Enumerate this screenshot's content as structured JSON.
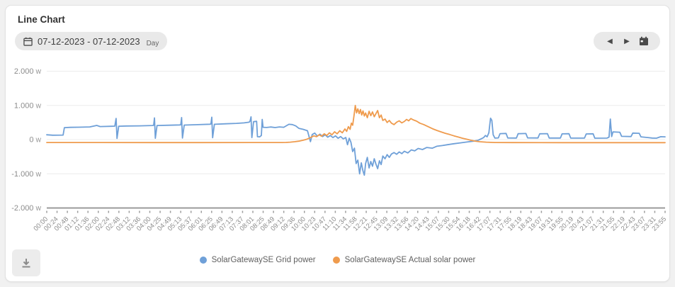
{
  "header": {
    "title": "Line Chart"
  },
  "toolbar": {
    "date_range": "07-12-2023 - 07-12-2023",
    "granularity": "Day",
    "nav": {
      "prev_icon": "◀",
      "next_icon": "▶"
    }
  },
  "colors": {
    "grid_power": "#6fa0d8",
    "solar_power": "#ef9b4d",
    "gridline": "#ececec",
    "axis": "#9b9b9b",
    "tick_text": "#8c8c8c"
  },
  "chart_data": {
    "type": "line",
    "title": "Line Chart",
    "xlabel": "",
    "ylabel": "",
    "unit": "W",
    "ylim": [
      -2000,
      2000
    ],
    "grid": "horizontal",
    "legend_position": "bottom",
    "y_ticks": [
      {
        "value": 2000,
        "label": "2.000"
      },
      {
        "value": 1000,
        "label": "1.000"
      },
      {
        "value": 0,
        "label": "0"
      },
      {
        "value": -1000,
        "label": "-1.000"
      },
      {
        "value": -2000,
        "label": "-2.000"
      }
    ],
    "x_tick_labels": [
      "00:00",
      "00:24",
      "00:48",
      "01:12",
      "01:36",
      "02:00",
      "02:24",
      "02:48",
      "03:12",
      "03:36",
      "04:00",
      "04:25",
      "04:49",
      "05:13",
      "05:37",
      "06:01",
      "06:25",
      "06:49",
      "07:13",
      "07:37",
      "08:01",
      "08:25",
      "08:49",
      "09:12",
      "09:36",
      "10:00",
      "10:23",
      "10:47",
      "11:10",
      "11:34",
      "11:58",
      "12:21",
      "12:45",
      "13:09",
      "13:32",
      "13:56",
      "14:20",
      "14:43",
      "15:07",
      "15:30",
      "15:54",
      "16:18",
      "16:42",
      "17:07",
      "17:31",
      "17:55",
      "18:19",
      "18:43",
      "19:07",
      "19:31",
      "19:55",
      "20:19",
      "20:43",
      "21:07",
      "21:31",
      "21:55",
      "22:19",
      "22:43",
      "23:07",
      "23:31",
      "23:55"
    ],
    "x_range_minutes": [
      0,
      1435
    ],
    "series": [
      {
        "name": "SolarGatewaySE Grid power",
        "color": "#6fa0d8",
        "points": [
          [
            0,
            140
          ],
          [
            14,
            128
          ],
          [
            38,
            132
          ],
          [
            41,
            350
          ],
          [
            55,
            358
          ],
          [
            75,
            362
          ],
          [
            100,
            372
          ],
          [
            116,
            415
          ],
          [
            124,
            382
          ],
          [
            150,
            390
          ],
          [
            158,
            394
          ],
          [
            161,
            620
          ],
          [
            163,
            35
          ],
          [
            167,
            392
          ],
          [
            185,
            398
          ],
          [
            215,
            402
          ],
          [
            245,
            412
          ],
          [
            248,
            416
          ],
          [
            250,
            635
          ],
          [
            252,
            40
          ],
          [
            256,
            412
          ],
          [
            285,
            420
          ],
          [
            308,
            428
          ],
          [
            311,
            432
          ],
          [
            313,
            645
          ],
          [
            315,
            45
          ],
          [
            319,
            424
          ],
          [
            345,
            436
          ],
          [
            378,
            450
          ],
          [
            381,
            455
          ],
          [
            383,
            655
          ],
          [
            385,
            55
          ],
          [
            389,
            448
          ],
          [
            415,
            462
          ],
          [
            440,
            475
          ],
          [
            458,
            490
          ],
          [
            470,
            510
          ],
          [
            472,
            545
          ],
          [
            474,
            665
          ],
          [
            476,
            60
          ],
          [
            480,
            525
          ],
          [
            487,
            535
          ],
          [
            489,
            85
          ],
          [
            494,
            80
          ],
          [
            498,
            120
          ],
          [
            500,
            590
          ],
          [
            502,
            360
          ],
          [
            510,
            355
          ],
          [
            520,
            368
          ],
          [
            530,
            352
          ],
          [
            540,
            370
          ],
          [
            550,
            360
          ],
          [
            562,
            448
          ],
          [
            570,
            440
          ],
          [
            578,
            400
          ],
          [
            585,
            330
          ],
          [
            595,
            300
          ],
          [
            605,
            260
          ],
          [
            612,
            -60
          ],
          [
            616,
            150
          ],
          [
            622,
            190
          ],
          [
            628,
            100
          ],
          [
            634,
            160
          ],
          [
            640,
            90
          ],
          [
            646,
            140
          ],
          [
            652,
            70
          ],
          [
            658,
            120
          ],
          [
            664,
            60
          ],
          [
            670,
            110
          ],
          [
            676,
            40
          ],
          [
            682,
            90
          ],
          [
            688,
            20
          ],
          [
            694,
            60
          ],
          [
            698,
            -150
          ],
          [
            702,
            40
          ],
          [
            706,
            -80
          ],
          [
            710,
            -350
          ],
          [
            714,
            -250
          ],
          [
            718,
            -700
          ],
          [
            722,
            -600
          ],
          [
            726,
            -1000
          ],
          [
            730,
            -680
          ],
          [
            734,
            -920
          ],
          [
            737,
            -1040
          ],
          [
            740,
            -700
          ],
          [
            744,
            -520
          ],
          [
            748,
            -830
          ],
          [
            752,
            -640
          ],
          [
            756,
            -780
          ],
          [
            760,
            -560
          ],
          [
            764,
            -720
          ],
          [
            768,
            -850
          ],
          [
            772,
            -620
          ],
          [
            776,
            -730
          ],
          [
            780,
            -480
          ],
          [
            785,
            -560
          ],
          [
            790,
            -440
          ],
          [
            795,
            -520
          ],
          [
            800,
            -420
          ],
          [
            806,
            -380
          ],
          [
            812,
            -430
          ],
          [
            818,
            -360
          ],
          [
            824,
            -410
          ],
          [
            830,
            -340
          ],
          [
            838,
            -390
          ],
          [
            846,
            -300
          ],
          [
            854,
            -330
          ],
          [
            862,
            -260
          ],
          [
            872,
            -290
          ],
          [
            882,
            -230
          ],
          [
            895,
            -250
          ],
          [
            905,
            -195
          ],
          [
            918,
            -175
          ],
          [
            930,
            -150
          ],
          [
            945,
            -120
          ],
          [
            960,
            -95
          ],
          [
            975,
            -70
          ],
          [
            990,
            -45
          ],
          [
            1000,
            -25
          ],
          [
            1008,
            20
          ],
          [
            1014,
            60
          ],
          [
            1018,
            120
          ],
          [
            1022,
            80
          ],
          [
            1026,
            200
          ],
          [
            1028,
            420
          ],
          [
            1030,
            625
          ],
          [
            1033,
            560
          ],
          [
            1036,
            140
          ],
          [
            1040,
            45
          ],
          [
            1048,
            50
          ],
          [
            1052,
            175
          ],
          [
            1066,
            180
          ],
          [
            1070,
            48
          ],
          [
            1090,
            45
          ],
          [
            1094,
            172
          ],
          [
            1112,
            178
          ],
          [
            1116,
            50
          ],
          [
            1140,
            48
          ],
          [
            1144,
            170
          ],
          [
            1162,
            175
          ],
          [
            1166,
            45
          ],
          [
            1192,
            46
          ],
          [
            1196,
            168
          ],
          [
            1212,
            172
          ],
          [
            1216,
            44
          ],
          [
            1248,
            46
          ],
          [
            1252,
            165
          ],
          [
            1268,
            170
          ],
          [
            1272,
            42
          ],
          [
            1300,
            44
          ],
          [
            1305,
            75
          ],
          [
            1308,
            600
          ],
          [
            1311,
            90
          ],
          [
            1314,
            225
          ],
          [
            1330,
            215
          ],
          [
            1334,
            95
          ],
          [
            1356,
            90
          ],
          [
            1360,
            190
          ],
          [
            1375,
            185
          ],
          [
            1379,
            80
          ],
          [
            1395,
            60
          ],
          [
            1405,
            45
          ],
          [
            1415,
            42
          ],
          [
            1425,
            85
          ],
          [
            1435,
            80
          ]
        ]
      },
      {
        "name": "SolarGatewaySE Actual solar power",
        "color": "#ef9b4d",
        "points": [
          [
            0,
            -85
          ],
          [
            120,
            -86
          ],
          [
            240,
            -88
          ],
          [
            360,
            -87
          ],
          [
            480,
            -85
          ],
          [
            520,
            -85
          ],
          [
            545,
            -84
          ],
          [
            555,
            -82
          ],
          [
            565,
            -75
          ],
          [
            575,
            -62
          ],
          [
            585,
            -45
          ],
          [
            595,
            -18
          ],
          [
            602,
            5
          ],
          [
            608,
            35
          ],
          [
            614,
            70
          ],
          [
            620,
            110
          ],
          [
            626,
            85
          ],
          [
            632,
            140
          ],
          [
            638,
            100
          ],
          [
            644,
            170
          ],
          [
            650,
            120
          ],
          [
            656,
            200
          ],
          [
            662,
            140
          ],
          [
            668,
            230
          ],
          [
            674,
            170
          ],
          [
            680,
            260
          ],
          [
            686,
            200
          ],
          [
            692,
            310
          ],
          [
            696,
            240
          ],
          [
            700,
            380
          ],
          [
            704,
            300
          ],
          [
            707,
            480
          ],
          [
            710,
            420
          ],
          [
            713,
            700
          ],
          [
            716,
            1000
          ],
          [
            719,
            780
          ],
          [
            722,
            900
          ],
          [
            725,
            760
          ],
          [
            728,
            880
          ],
          [
            731,
            720
          ],
          [
            734,
            840
          ],
          [
            737,
            690
          ],
          [
            740,
            780
          ],
          [
            744,
            640
          ],
          [
            748,
            830
          ],
          [
            752,
            700
          ],
          [
            756,
            810
          ],
          [
            760,
            670
          ],
          [
            764,
            760
          ],
          [
            768,
            850
          ],
          [
            772,
            640
          ],
          [
            776,
            720
          ],
          [
            780,
            560
          ],
          [
            785,
            600
          ],
          [
            790,
            500
          ],
          [
            795,
            560
          ],
          [
            800,
            480
          ],
          [
            806,
            440
          ],
          [
            812,
            510
          ],
          [
            818,
            550
          ],
          [
            824,
            490
          ],
          [
            830,
            530
          ],
          [
            835,
            590
          ],
          [
            840,
            550
          ],
          [
            845,
            615
          ],
          [
            850,
            580
          ],
          [
            858,
            540
          ],
          [
            866,
            480
          ],
          [
            875,
            440
          ],
          [
            885,
            380
          ],
          [
            895,
            320
          ],
          [
            905,
            270
          ],
          [
            915,
            225
          ],
          [
            925,
            185
          ],
          [
            935,
            150
          ],
          [
            945,
            110
          ],
          [
            955,
            75
          ],
          [
            965,
            40
          ],
          [
            975,
            10
          ],
          [
            985,
            -20
          ],
          [
            995,
            -45
          ],
          [
            1005,
            -62
          ],
          [
            1020,
            -75
          ],
          [
            1040,
            -84
          ],
          [
            1080,
            -88
          ],
          [
            1200,
            -90
          ],
          [
            1435,
            -90
          ]
        ]
      }
    ]
  }
}
